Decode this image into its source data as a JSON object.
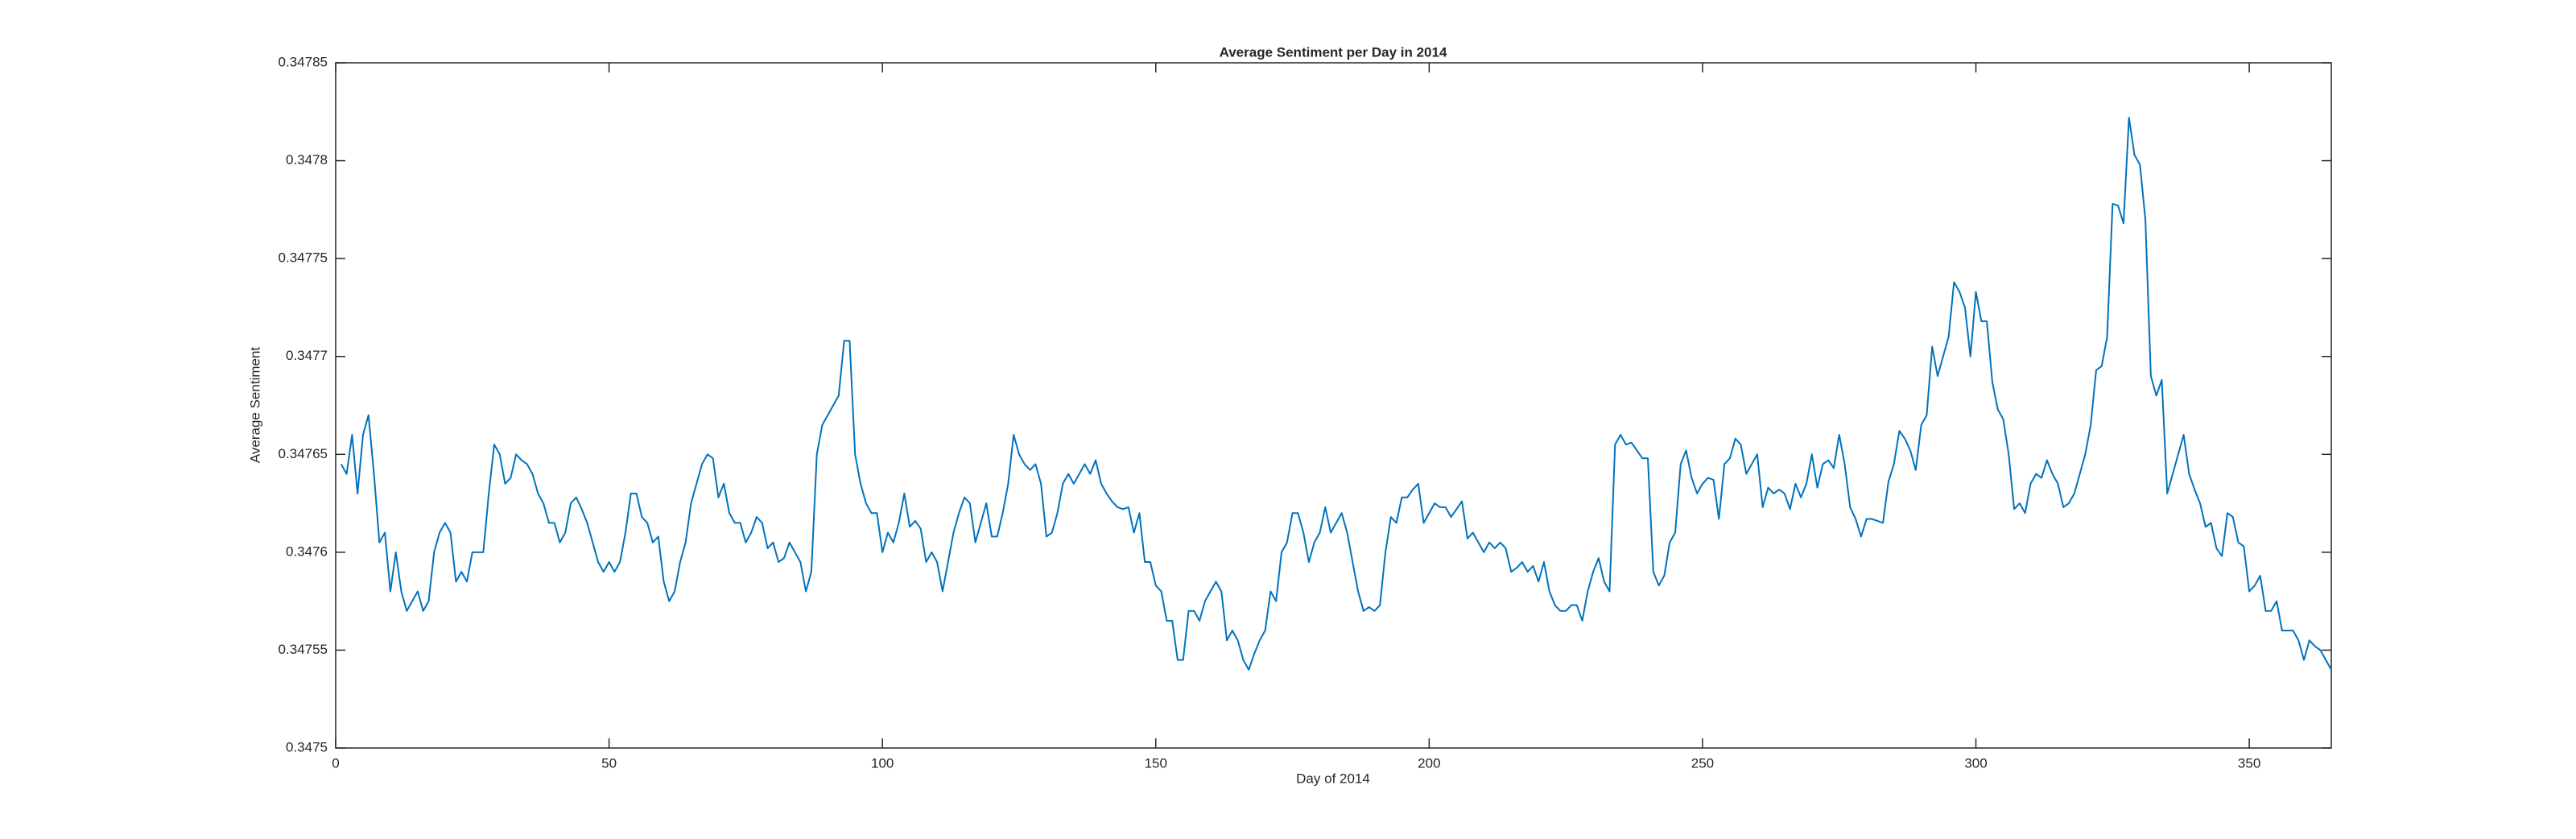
{
  "chart_data": {
    "type": "line",
    "title": "Average Sentiment per Day in 2014",
    "x_label": "Day of 2014",
    "y_label": "Average Sentiment",
    "color": "#0072bd",
    "xlim": [
      0,
      365
    ],
    "xticks": [
      0,
      50,
      100,
      150,
      200,
      250,
      300,
      350
    ],
    "ylim": [
      0.3475,
      0.34785
    ],
    "yticks": [
      0.3475,
      0.34755,
      0.3476,
      0.34765,
      0.3477,
      0.34775,
      0.3478,
      0.34785
    ],
    "x": [
      1,
      2,
      3,
      4,
      5,
      6,
      7,
      8,
      9,
      10,
      11,
      12,
      13,
      14,
      15,
      16,
      17,
      18,
      19,
      20,
      21,
      22,
      23,
      24,
      25,
      26,
      27,
      28,
      29,
      30,
      31,
      32,
      33,
      34,
      35,
      36,
      37,
      38,
      39,
      40,
      41,
      42,
      43,
      44,
      45,
      46,
      47,
      48,
      49,
      50,
      51,
      52,
      53,
      54,
      55,
      56,
      57,
      58,
      59,
      60,
      61,
      62,
      63,
      64,
      65,
      66,
      67,
      68,
      69,
      70,
      71,
      72,
      73,
      74,
      75,
      76,
      77,
      78,
      79,
      80,
      81,
      82,
      83,
      84,
      85,
      86,
      87,
      88,
      89,
      90,
      91,
      92,
      93,
      94,
      95,
      96,
      97,
      98,
      99,
      100,
      101,
      102,
      103,
      104,
      105,
      106,
      107,
      108,
      109,
      110,
      111,
      112,
      113,
      114,
      115,
      116,
      117,
      118,
      119,
      120,
      121,
      122,
      123,
      124,
      125,
      126,
      127,
      128,
      129,
      130,
      131,
      132,
      133,
      134,
      135,
      136,
      137,
      138,
      139,
      140,
      141,
      142,
      143,
      144,
      145,
      146,
      147,
      148,
      149,
      150,
      151,
      152,
      153,
      154,
      155,
      156,
      157,
      158,
      159,
      160,
      161,
      162,
      163,
      164,
      165,
      166,
      167,
      168,
      169,
      170,
      171,
      172,
      173,
      174,
      175,
      176,
      177,
      178,
      179,
      180,
      181,
      182,
      183,
      184,
      185,
      186,
      187,
      188,
      189,
      190,
      191,
      192,
      193,
      194,
      195,
      196,
      197,
      198,
      199,
      200,
      201,
      202,
      203,
      204,
      205,
      206,
      207,
      208,
      209,
      210,
      211,
      212,
      213,
      214,
      215,
      216,
      217,
      218,
      219,
      220,
      221,
      222,
      223,
      224,
      225,
      226,
      227,
      228,
      229,
      230,
      231,
      232,
      233,
      234,
      235,
      236,
      237,
      238,
      239,
      240,
      241,
      242,
      243,
      244,
      245,
      246,
      247,
      248,
      249,
      250,
      251,
      252,
      253,
      254,
      255,
      256,
      257,
      258,
      259,
      260,
      261,
      262,
      263,
      264,
      265,
      266,
      267,
      268,
      269,
      270,
      271,
      272,
      273,
      274,
      275,
      276,
      277,
      278,
      279,
      280,
      281,
      282,
      283,
      284,
      285,
      286,
      287,
      288,
      289,
      290,
      291,
      292,
      293,
      294,
      295,
      296,
      297,
      298,
      299,
      300,
      301,
      302,
      303,
      304,
      305,
      306,
      307,
      308,
      309,
      310,
      311,
      312,
      313,
      314,
      315,
      316,
      317,
      318,
      319,
      320,
      321,
      322,
      323,
      324,
      325,
      326,
      327,
      328,
      329,
      330,
      331,
      332,
      333,
      334,
      335,
      336,
      337,
      338,
      339,
      340,
      341,
      342,
      343,
      344,
      345,
      346,
      347,
      348,
      349,
      350,
      351,
      352,
      353,
      354,
      355,
      356,
      357,
      358,
      359,
      360,
      361,
      362,
      363,
      364,
      365
    ],
    "values": [
      0.347645,
      0.34764,
      0.34766,
      0.34763,
      0.34766,
      0.34767,
      0.34764,
      0.347605,
      0.34761,
      0.34758,
      0.3476,
      0.34758,
      0.34757,
      0.347575,
      0.34758,
      0.34757,
      0.347575,
      0.3476,
      0.34761,
      0.347615,
      0.34761,
      0.347585,
      0.34759,
      0.347585,
      0.3476,
      0.3476,
      0.3476,
      0.34763,
      0.347655,
      0.34765,
      0.347635,
      0.347638,
      0.34765,
      0.347647,
      0.347645,
      0.34764,
      0.34763,
      0.347625,
      0.347615,
      0.347615,
      0.347605,
      0.34761,
      0.347625,
      0.347628,
      0.347622,
      0.347615,
      0.347605,
      0.347595,
      0.34759,
      0.347595,
      0.34759,
      0.347595,
      0.34761,
      0.34763,
      0.34763,
      0.347618,
      0.347615,
      0.347605,
      0.347608,
      0.347585,
      0.347575,
      0.34758,
      0.347595,
      0.347605,
      0.347625,
      0.347635,
      0.347645,
      0.34765,
      0.347648,
      0.347628,
      0.347635,
      0.34762,
      0.347615,
      0.347615,
      0.347605,
      0.34761,
      0.347618,
      0.347615,
      0.347602,
      0.347605,
      0.347595,
      0.347597,
      0.347605,
      0.3476,
      0.347595,
      0.34758,
      0.34759,
      0.34765,
      0.347665,
      0.34767,
      0.347675,
      0.34768,
      0.347708,
      0.347708,
      0.34765,
      0.347635,
      0.347625,
      0.34762,
      0.34762,
      0.3476,
      0.34761,
      0.347605,
      0.347615,
      0.34763,
      0.347613,
      0.347616,
      0.347612,
      0.347595,
      0.3476,
      0.347595,
      0.34758,
      0.347595,
      0.34761,
      0.34762,
      0.347628,
      0.347625,
      0.347605,
      0.347615,
      0.347625,
      0.347608,
      0.347608,
      0.34762,
      0.347635,
      0.34766,
      0.34765,
      0.347645,
      0.347642,
      0.347645,
      0.347635,
      0.347608,
      0.34761,
      0.34762,
      0.347635,
      0.34764,
      0.347635,
      0.34764,
      0.347645,
      0.34764,
      0.347647,
      0.347635,
      0.34763,
      0.347626,
      0.347623,
      0.347622,
      0.347623,
      0.34761,
      0.34762,
      0.347595,
      0.347595,
      0.347583,
      0.34758,
      0.347565,
      0.347565,
      0.347545,
      0.347545,
      0.34757,
      0.34757,
      0.347565,
      0.347575,
      0.34758,
      0.347585,
      0.34758,
      0.347555,
      0.34756,
      0.347555,
      0.347545,
      0.34754,
      0.347548,
      0.347555,
      0.34756,
      0.34758,
      0.347575,
      0.3476,
      0.347605,
      0.34762,
      0.34762,
      0.34761,
      0.347595,
      0.347605,
      0.34761,
      0.347623,
      0.34761,
      0.347615,
      0.34762,
      0.34761,
      0.347595,
      0.34758,
      0.34757,
      0.347572,
      0.34757,
      0.347573,
      0.3476,
      0.347618,
      0.347615,
      0.347628,
      0.347628,
      0.347632,
      0.347635,
      0.347615,
      0.34762,
      0.347625,
      0.347623,
      0.347623,
      0.347618,
      0.347622,
      0.347626,
      0.347607,
      0.34761,
      0.347605,
      0.3476,
      0.347605,
      0.347602,
      0.347605,
      0.347602,
      0.34759,
      0.347592,
      0.347595,
      0.34759,
      0.347593,
      0.347585,
      0.347595,
      0.34758,
      0.347573,
      0.34757,
      0.34757,
      0.347573,
      0.347573,
      0.347565,
      0.34758,
      0.34759,
      0.347597,
      0.347585,
      0.34758,
      0.347655,
      0.34766,
      0.347655,
      0.347656,
      0.347652,
      0.347648,
      0.347648,
      0.34759,
      0.347583,
      0.347588,
      0.347605,
      0.34761,
      0.347645,
      0.347652,
      0.347638,
      0.34763,
      0.347635,
      0.347638,
      0.347637,
      0.347617,
      0.347645,
      0.347648,
      0.347658,
      0.347655,
      0.34764,
      0.347645,
      0.34765,
      0.347623,
      0.347633,
      0.34763,
      0.347632,
      0.34763,
      0.347622,
      0.347635,
      0.347628,
      0.347635,
      0.34765,
      0.347633,
      0.347645,
      0.347647,
      0.347643,
      0.34766,
      0.347645,
      0.347623,
      0.347617,
      0.347608,
      0.347617,
      0.347617,
      0.347616,
      0.347615,
      0.347636,
      0.347645,
      0.347662,
      0.347658,
      0.347652,
      0.347642,
      0.347665,
      0.34767,
      0.347705,
      0.34769,
      0.3477,
      0.34771,
      0.347738,
      0.347733,
      0.347725,
      0.3477,
      0.347733,
      0.347718,
      0.347718,
      0.347687,
      0.347673,
      0.347668,
      0.34765,
      0.347622,
      0.347625,
      0.34762,
      0.347635,
      0.34764,
      0.347638,
      0.347647,
      0.34764,
      0.347635,
      0.347623,
      0.347625,
      0.34763,
      0.34764,
      0.34765,
      0.347665,
      0.347693,
      0.347695,
      0.34771,
      0.347778,
      0.347777,
      0.347768,
      0.347822,
      0.347803,
      0.347798,
      0.34777,
      0.34769,
      0.34768,
      0.347688,
      0.34763,
      0.34764,
      0.34765,
      0.34766,
      0.34764,
      0.347632,
      0.347625,
      0.347613,
      0.347615,
      0.347602,
      0.347598,
      0.34762,
      0.347618,
      0.347605,
      0.347603,
      0.34758,
      0.347583,
      0.347588,
      0.34757,
      0.34757,
      0.347575,
      0.34756,
      0.34756,
      0.34756,
      0.347555,
      0.347545,
      0.347555,
      0.347552,
      0.34755,
      0.347545,
      0.34754
    ]
  }
}
